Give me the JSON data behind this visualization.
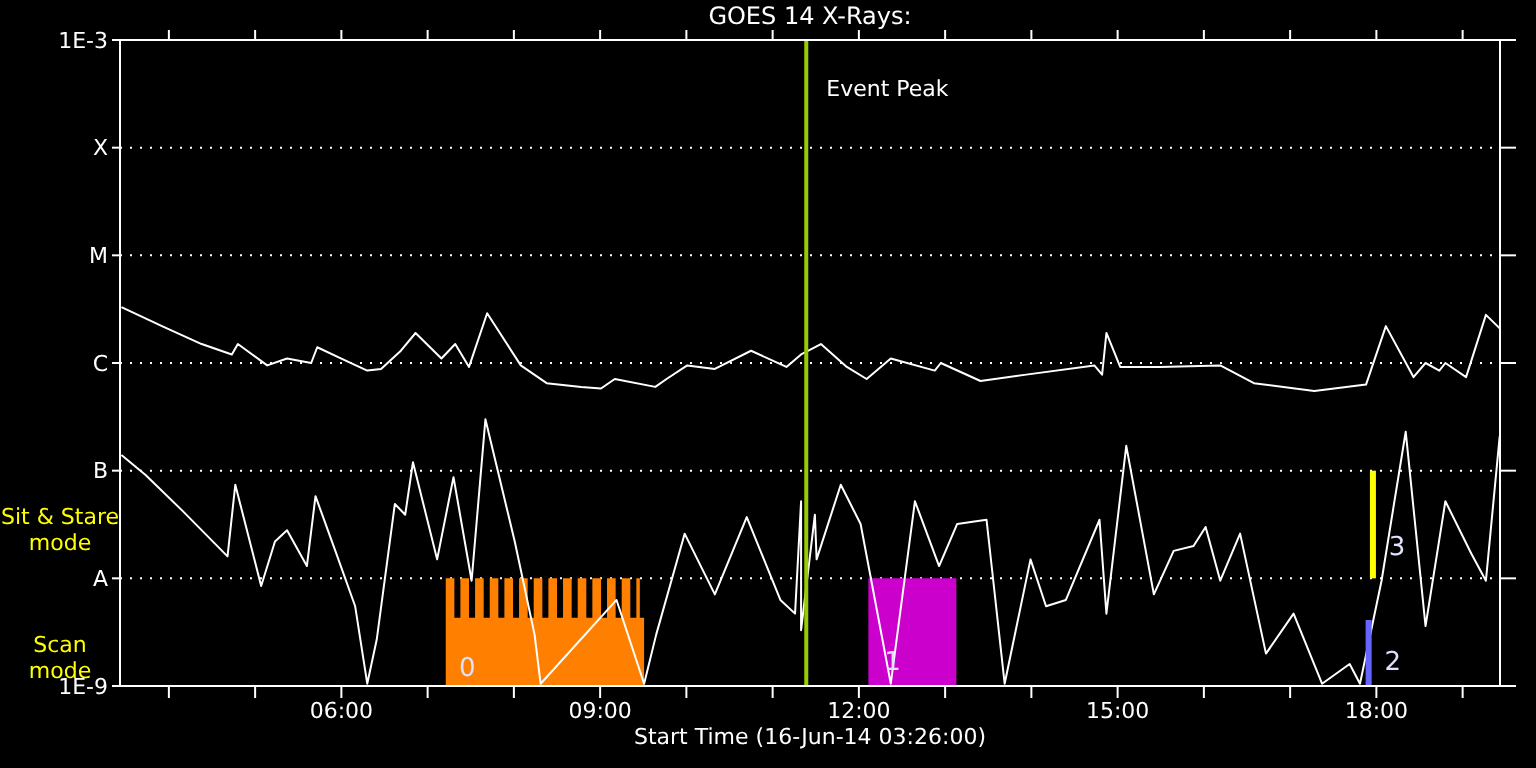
{
  "chart_data": {
    "type": "line",
    "title": "GOES 14 X-Rays:",
    "xlabel": "Start Time (16-Jun-14 03:26:00)",
    "xlim": [
      3.4333,
      19.4333
    ],
    "xticks": [
      {
        "value": 4,
        "label": null
      },
      {
        "value": 5,
        "label": null
      },
      {
        "value": 6,
        "label": "06:00"
      },
      {
        "value": 7,
        "label": null
      },
      {
        "value": 8,
        "label": null
      },
      {
        "value": 9,
        "label": "09:00"
      },
      {
        "value": 10,
        "label": null
      },
      {
        "value": 11,
        "label": null
      },
      {
        "value": 12,
        "label": "12:00"
      },
      {
        "value": 13,
        "label": null
      },
      {
        "value": 14,
        "label": null
      },
      {
        "value": 15,
        "label": "15:00"
      },
      {
        "value": 16,
        "label": null
      },
      {
        "value": 17,
        "label": null
      },
      {
        "value": 18,
        "label": "18:00"
      },
      {
        "value": 19,
        "label": null
      }
    ],
    "ylim": [
      1e-09,
      0.001
    ],
    "yticks": [
      {
        "value": 1e-09,
        "label": "1E-9"
      },
      {
        "value": 1e-08,
        "label": "A"
      },
      {
        "value": 1e-07,
        "label": "B"
      },
      {
        "value": 1e-06,
        "label": "C"
      },
      {
        "value": 1e-05,
        "label": "M"
      },
      {
        "value": 0.0001,
        "label": "X"
      },
      {
        "value": 0.001,
        "label": "1E-3"
      }
    ],
    "log": "y",
    "grid": "y",
    "series": [
      {
        "color": "#ffffff",
        "x": [
          3.45,
          3.92,
          4.38,
          4.73,
          4.8,
          5.14,
          5.37,
          5.65,
          5.72,
          6.0,
          6.3,
          6.46,
          6.69,
          6.86,
          7.16,
          7.32,
          7.48,
          7.69,
          8.08,
          8.38,
          8.78,
          9.01,
          9.17,
          9.64,
          9.77,
          10.01,
          10.33,
          10.75,
          11.16,
          11.33,
          11.56,
          11.86,
          12.09,
          12.37,
          12.88,
          12.95,
          13.41,
          13.94,
          14.73,
          14.82,
          14.87,
          15.03,
          15.49,
          16.19,
          16.58,
          17.28,
          17.88,
          18.11,
          18.43,
          18.57,
          18.73,
          18.8,
          19.04,
          19.27,
          19.43
        ],
        "values": [
          3.3e-06,
          2.2e-06,
          1.5e-06,
          1.2e-06,
          1.5e-06,
          9.5e-07,
          1.1e-06,
          1e-06,
          1.4e-06,
          1.1e-06,
          8.5e-07,
          8.8e-07,
          1.3e-06,
          1.9e-06,
          1.1e-06,
          1.5e-06,
          9.2e-07,
          2.9e-06,
          9.5e-07,
          6.5e-07,
          6e-07,
          5.8e-07,
          7.1e-07,
          6e-07,
          7.1e-07,
          9.5e-07,
          8.8e-07,
          1.3e-06,
          9.2e-07,
          1.2e-06,
          1.5e-06,
          9.2e-07,
          7.1e-07,
          1.1e-06,
          8.5e-07,
          1e-06,
          6.8e-07,
          7.8e-07,
          9.5e-07,
          7.8e-07,
          1.9e-06,
          9.2e-07,
          9.2e-07,
          9.5e-07,
          6.5e-07,
          5.5e-07,
          6.3e-07,
          2.2e-06,
          7.4e-07,
          1e-06,
          8.5e-07,
          1e-06,
          7.4e-07,
          2.8e-06,
          2.1e-06
        ]
      },
      {
        "color": "#ffffff",
        "x": [
          3.45,
          3.73,
          4.15,
          4.68,
          4.77,
          5.07,
          5.23,
          5.37,
          5.6,
          5.7,
          5.93,
          6.16,
          6.3,
          6.41,
          6.62,
          6.74,
          6.83,
          7.11,
          7.3,
          7.51,
          7.67,
          8.01,
          8.24,
          8.31,
          9.19,
          9.51,
          9.65,
          9.98,
          10.33,
          10.7,
          11.09,
          11.26,
          11.33,
          11.33,
          11.49,
          11.51,
          11.79,
          12.02,
          12.37,
          12.65,
          12.93,
          13.14,
          13.48,
          13.69,
          13.99,
          14.17,
          14.4,
          14.79,
          14.87,
          15.1,
          15.42,
          15.65,
          15.88,
          16.02,
          16.19,
          16.42,
          16.72,
          17.04,
          17.37,
          17.69,
          17.81,
          18.06,
          18.34,
          18.57,
          18.8,
          19.1,
          19.27,
          19.43
        ],
        "values": [
          1.4e-07,
          9.1e-08,
          4.3e-08,
          1.6e-08,
          7.4e-08,
          8.5e-09,
          2.2e-08,
          2.8e-08,
          1.3e-08,
          5.8e-08,
          1.8e-08,
          5.5e-09,
          1.05e-09,
          2.7e-09,
          4.9e-08,
          3.9e-08,
          1.2e-07,
          1.5e-08,
          8.7e-08,
          9.5e-09,
          3e-07,
          2.2e-08,
          3e-09,
          1.05e-09,
          6.3e-09,
          1.05e-09,
          3e-09,
          2.6e-08,
          7.1e-09,
          3.7e-08,
          6.3e-09,
          4.7e-09,
          5.2e-08,
          3.3e-09,
          3.9e-08,
          1.5e-08,
          7.4e-08,
          3.2e-08,
          1.05e-09,
          5.2e-08,
          1.3e-08,
          3.2e-08,
          3.5e-08,
          1.05e-09,
          1.5e-08,
          5.5e-09,
          6.3e-09,
          3.5e-08,
          4.7e-09,
          1.7e-07,
          7.1e-09,
          1.8e-08,
          2e-08,
          3e-08,
          9.5e-09,
          2.6e-08,
          2e-09,
          4.7e-09,
          1.05e-09,
          1.6e-09,
          1.05e-09,
          9.5e-09,
          2.3e-07,
          3.6e-09,
          5.2e-08,
          1.7e-08,
          9.5e-09,
          2.1e-07
        ]
      },
      {
        "type": "area",
        "color": "#ff8000",
        "x": [
          7.21,
          7.31,
          7.31,
          7.38,
          7.38,
          7.48,
          7.48,
          7.55,
          7.55,
          7.65,
          7.65,
          7.72,
          7.72,
          7.82,
          7.82,
          7.89,
          7.89,
          7.99,
          7.99,
          8.06,
          8.06,
          8.16,
          8.16,
          8.23,
          8.23,
          8.33,
          8.33,
          8.4,
          8.4,
          8.5,
          8.5,
          8.57,
          8.57,
          8.67,
          8.67,
          8.74,
          8.74,
          8.84,
          8.84,
          8.91,
          8.91,
          9.01,
          9.01,
          9.08,
          9.08,
          9.18,
          9.18,
          9.25,
          9.25,
          9.35,
          9.35,
          9.42,
          9.42,
          9.46,
          9.46,
          9.51
        ],
        "values": [
          1e-08,
          1e-08,
          4.3e-09,
          4.3e-09,
          1e-08,
          1e-08,
          4.3e-09,
          4.3e-09,
          1e-08,
          1e-08,
          4.3e-09,
          4.3e-09,
          1e-08,
          1e-08,
          4.3e-09,
          4.3e-09,
          1e-08,
          1e-08,
          4.3e-09,
          4.3e-09,
          1e-08,
          1e-08,
          4.3e-09,
          4.3e-09,
          1e-08,
          1e-08,
          4.3e-09,
          4.3e-09,
          1e-08,
          1e-08,
          4.3e-09,
          4.3e-09,
          1e-08,
          1e-08,
          4.3e-09,
          4.3e-09,
          1e-08,
          1e-08,
          4.3e-09,
          4.3e-09,
          1e-08,
          1e-08,
          4.3e-09,
          4.3e-09,
          1e-08,
          1e-08,
          4.3e-09,
          4.3e-09,
          1e-08,
          1e-08,
          4.3e-09,
          4.3e-09,
          1e-08,
          1e-08,
          4.3e-09,
          4.3e-09
        ]
      },
      {
        "type": "area",
        "color": "#cc00cc",
        "x": [
          12.11,
          13.13
        ],
        "values": [
          1e-08,
          1e-08
        ]
      },
      {
        "color": "#ffff00",
        "x": [
          17.96,
          17.96
        ],
        "values": [
          1e-08,
          1e-07
        ]
      },
      {
        "color": "#6666ff",
        "x": [
          17.91,
          17.91
        ],
        "values": [
          1e-09,
          4.1e-09
        ]
      }
    ],
    "ref_lines": [
      {
        "axis": "x",
        "value": 11.39,
        "label": "Event Peak",
        "color": "#99cc00"
      }
    ],
    "annotations": [
      "Sit & Stare mode",
      "Scan mode",
      {
        "text": "0",
        "x": 7.27,
        "y": 1.5e-09
      },
      {
        "text": "1",
        "x": 12.2,
        "y": 1.7e-09
      },
      {
        "text": "2",
        "x": 18.0,
        "y": 1.7e-09
      },
      {
        "text": "3",
        "x": 18.05,
        "y": 2e-08
      }
    ]
  }
}
